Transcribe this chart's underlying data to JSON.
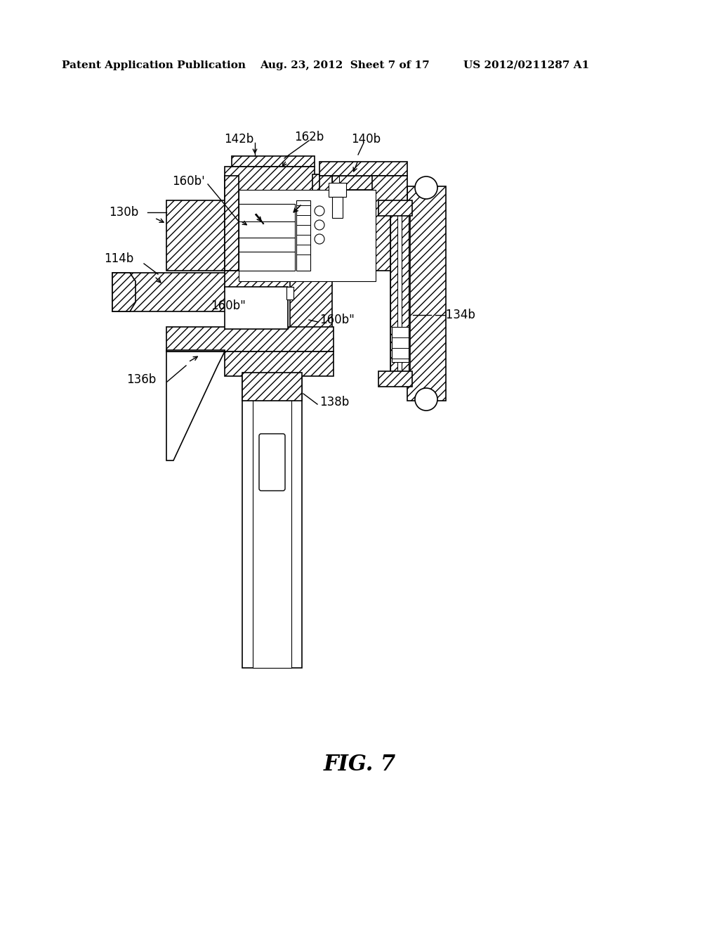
{
  "title": "FIG. 7",
  "header_left": "Patent Application Publication",
  "header_mid": "Aug. 23, 2012  Sheet 7 of 17",
  "header_right": "US 2012/0211287 A1",
  "bg_color": "#ffffff",
  "line_color": "#000000",
  "label_fontsize": 12,
  "header_fontsize": 11,
  "title_fontsize": 22
}
